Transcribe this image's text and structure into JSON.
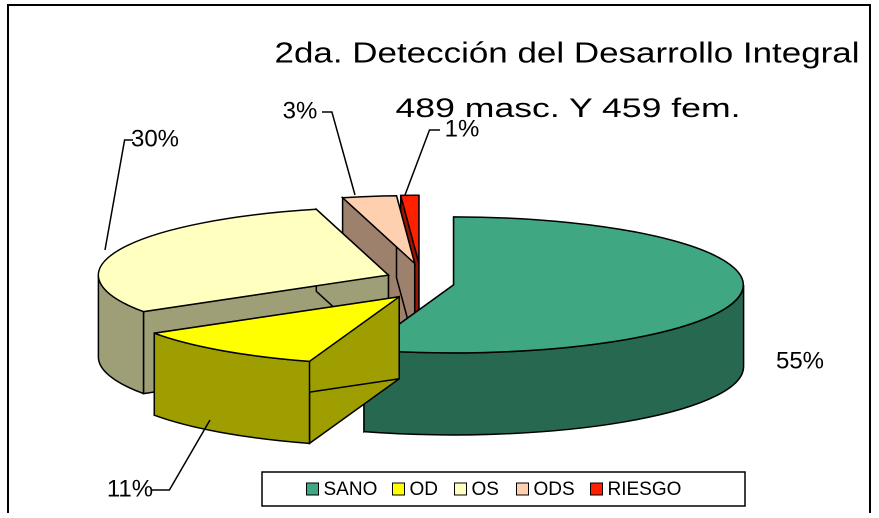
{
  "chart_data": {
    "type": "pie3d",
    "title": "2da. Detección del  Desarrollo Integral",
    "subtitle": "489 masc. Y 459 fem.",
    "categories": [
      "SANO",
      "OD",
      "OS",
      "ODS",
      "RIESGO"
    ],
    "values": [
      55,
      11,
      30,
      3,
      1
    ],
    "value_labels": [
      "55%",
      "11%",
      "30%",
      "3%",
      "1%"
    ],
    "colors": [
      "#3fa882",
      "#ffff00",
      "#ffffc0",
      "#ffd0b0",
      "#ff2000"
    ],
    "legend": "bottom"
  }
}
